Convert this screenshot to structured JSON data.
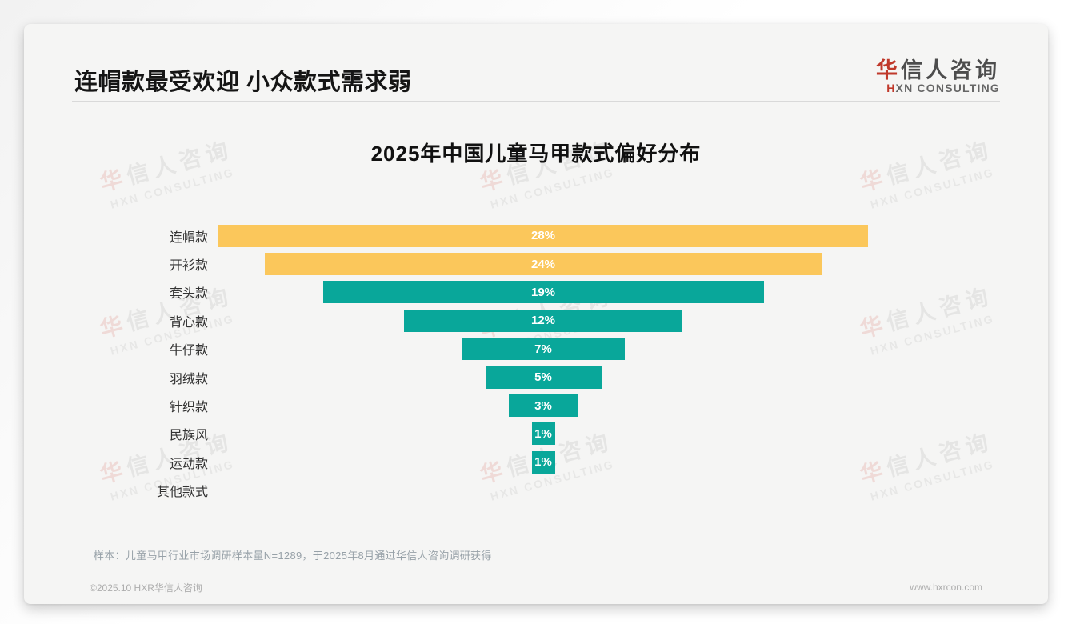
{
  "page": {
    "title": "连帽款最受欢迎 小众款式需求弱"
  },
  "logo": {
    "name_cn": "华信人咨询",
    "name_en": "HXN CONSULTING"
  },
  "chart_data": {
    "type": "bar",
    "variant": "centered-funnel-horizontal",
    "title": "2025年中国儿童马甲款式偏好分布",
    "categories": [
      "连帽款",
      "开衫款",
      "套头款",
      "背心款",
      "牛仔款",
      "羽绒款",
      "针织款",
      "民族风",
      "运动款",
      "其他款式"
    ],
    "values": [
      28,
      24,
      19,
      12,
      7,
      5,
      3,
      1,
      1,
      0
    ],
    "unit": "%",
    "bar_colors": [
      "#fbc75b",
      "#fbc75b",
      "#09a79a",
      "#09a79a",
      "#09a79a",
      "#09a79a",
      "#09a79a",
      "#09a79a",
      "#09a79a",
      "#09a79a"
    ],
    "value_label_color": "#ffffff",
    "xlim": [
      0,
      28
    ],
    "grid": "off",
    "legend": "none"
  },
  "colors": {
    "yellow": "#fbc75b",
    "teal": "#09a79a",
    "accent_red": "#c0392b"
  },
  "footnote": "样本：儿童马甲行业市场调研样本量N=1289，于2025年8月通过华信人咨询调研获得",
  "footer": {
    "left": "©2025.10 HXR华信人咨询",
    "right": "www.hxrcon.com"
  },
  "watermark": {
    "line1": "华信人咨询",
    "line2": "HXN CONSULTING"
  }
}
